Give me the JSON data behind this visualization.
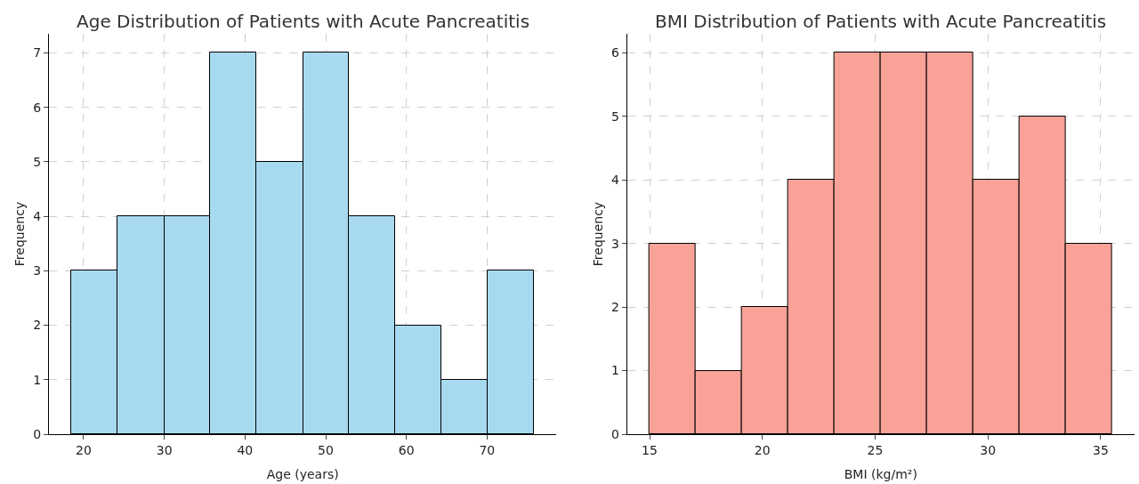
{
  "chart_data": [
    {
      "type": "histogram",
      "title": "Age Distribution of Patients with Acute Pancreatitis",
      "xlabel": "Age (years)",
      "ylabel": "Frequency",
      "bins": [
        18.5,
        24.2,
        30.0,
        35.7,
        41.4,
        47.2,
        52.9,
        58.6,
        64.3,
        70.1,
        75.8
      ],
      "values": [
        3,
        4,
        4,
        7,
        5,
        7,
        4,
        2,
        1,
        3
      ],
      "color": "#a8daef",
      "xlim": [
        15.7,
        78.6
      ],
      "xticks": [
        20,
        30,
        40,
        50,
        60,
        70
      ],
      "ylim": [
        0,
        7.35
      ],
      "yticks": [
        0,
        1,
        2,
        3,
        4,
        5,
        6,
        7
      ],
      "grid": true
    },
    {
      "type": "histogram",
      "title": "BMI Distribution of Patients with Acute Pancreatitis",
      "xlabel": "BMI (kg/m²)",
      "ylabel": "Frequency",
      "bins": [
        15.0,
        17.05,
        19.1,
        21.15,
        23.2,
        25.25,
        27.3,
        29.35,
        31.4,
        33.45,
        35.5
      ],
      "values": [
        3,
        1,
        2,
        4,
        6,
        6,
        6,
        4,
        5,
        3
      ],
      "color": "#f8a298",
      "xlim": [
        14.0,
        36.5
      ],
      "xticks": [
        15,
        20,
        25,
        30,
        35
      ],
      "ylim": [
        0,
        6.3
      ],
      "yticks": [
        0,
        1,
        2,
        3,
        4,
        5,
        6
      ],
      "grid": true
    }
  ]
}
